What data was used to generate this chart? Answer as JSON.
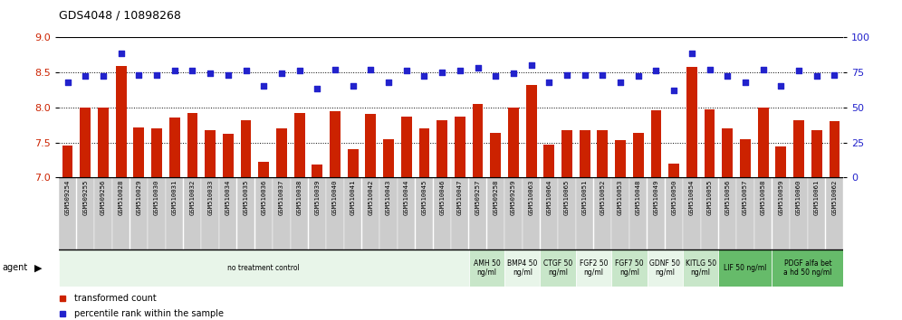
{
  "title": "GDS4048 / 10898268",
  "bar_color": "#CC2200",
  "dot_color": "#2222CC",
  "xlabels": [
    "GSM509254",
    "GSM509255",
    "GSM509256",
    "GSM510028",
    "GSM510029",
    "GSM510030",
    "GSM510031",
    "GSM510032",
    "GSM510033",
    "GSM510034",
    "GSM510035",
    "GSM510036",
    "GSM510037",
    "GSM510038",
    "GSM510039",
    "GSM510040",
    "GSM510041",
    "GSM510042",
    "GSM510043",
    "GSM510044",
    "GSM510045",
    "GSM510046",
    "GSM510047",
    "GSM509257",
    "GSM509258",
    "GSM509259",
    "GSM510063",
    "GSM510064",
    "GSM510065",
    "GSM510051",
    "GSM510052",
    "GSM510053",
    "GSM510048",
    "GSM510049",
    "GSM510050",
    "GSM510054",
    "GSM510055",
    "GSM510056",
    "GSM510057",
    "GSM510058",
    "GSM510059",
    "GSM510060",
    "GSM510061",
    "GSM510062"
  ],
  "bar_values": [
    7.45,
    8.0,
    7.99,
    8.58,
    7.71,
    7.7,
    7.85,
    7.92,
    7.68,
    7.62,
    7.81,
    7.22,
    7.7,
    7.92,
    7.18,
    7.94,
    7.4,
    7.9,
    7.55,
    7.87,
    7.7,
    7.82,
    7.87,
    8.05,
    7.63,
    8.0,
    8.32,
    7.47,
    7.68,
    7.68,
    7.68,
    7.53,
    7.63,
    7.96,
    7.2,
    8.57,
    7.97,
    7.7,
    7.55,
    8.0,
    7.44,
    7.82,
    7.68,
    7.8
  ],
  "dot_values": [
    68,
    72,
    72,
    88,
    73,
    73,
    76,
    76,
    74,
    73,
    76,
    65,
    74,
    76,
    63,
    77,
    65,
    77,
    68,
    76,
    72,
    75,
    76,
    78,
    72,
    74,
    80,
    68,
    73,
    73,
    73,
    68,
    72,
    76,
    62,
    88,
    77,
    72,
    68,
    77,
    65,
    76,
    72,
    73
  ],
  "bar_baseline": 7.0,
  "ylim_left": [
    7.0,
    9.0
  ],
  "ylim_right": [
    0,
    100
  ],
  "yticks_left": [
    7.0,
    7.5,
    8.0,
    8.5,
    9.0
  ],
  "yticks_right": [
    0,
    25,
    50,
    75,
    100
  ],
  "dotted_ylines": [
    7.5,
    8.0,
    8.5
  ],
  "agent_groups": [
    {
      "label": "no treatment control",
      "start": 0,
      "end": 23,
      "color": "#e8f5e9"
    },
    {
      "label": "AMH 50\nng/ml",
      "start": 23,
      "end": 25,
      "color": "#c8e6c9"
    },
    {
      "label": "BMP4 50\nng/ml",
      "start": 25,
      "end": 27,
      "color": "#e8f5e9"
    },
    {
      "label": "CTGF 50\nng/ml",
      "start": 27,
      "end": 29,
      "color": "#c8e6c9"
    },
    {
      "label": "FGF2 50\nng/ml",
      "start": 29,
      "end": 31,
      "color": "#e8f5e9"
    },
    {
      "label": "FGF7 50\nng/ml",
      "start": 31,
      "end": 33,
      "color": "#c8e6c9"
    },
    {
      "label": "GDNF 50\nng/ml",
      "start": 33,
      "end": 35,
      "color": "#e8f5e9"
    },
    {
      "label": "KITLG 50\nng/ml",
      "start": 35,
      "end": 37,
      "color": "#c8e6c9"
    },
    {
      "label": "LIF 50 ng/ml",
      "start": 37,
      "end": 40,
      "color": "#66bb6a"
    },
    {
      "label": "PDGF alfa bet\na hd 50 ng/ml",
      "start": 40,
      "end": 44,
      "color": "#66bb6a"
    }
  ],
  "xlabel_bg_color": "#cccccc",
  "background_color": "#ffffff",
  "left_axis_color": "#CC2200",
  "right_axis_color": "#2222CC"
}
